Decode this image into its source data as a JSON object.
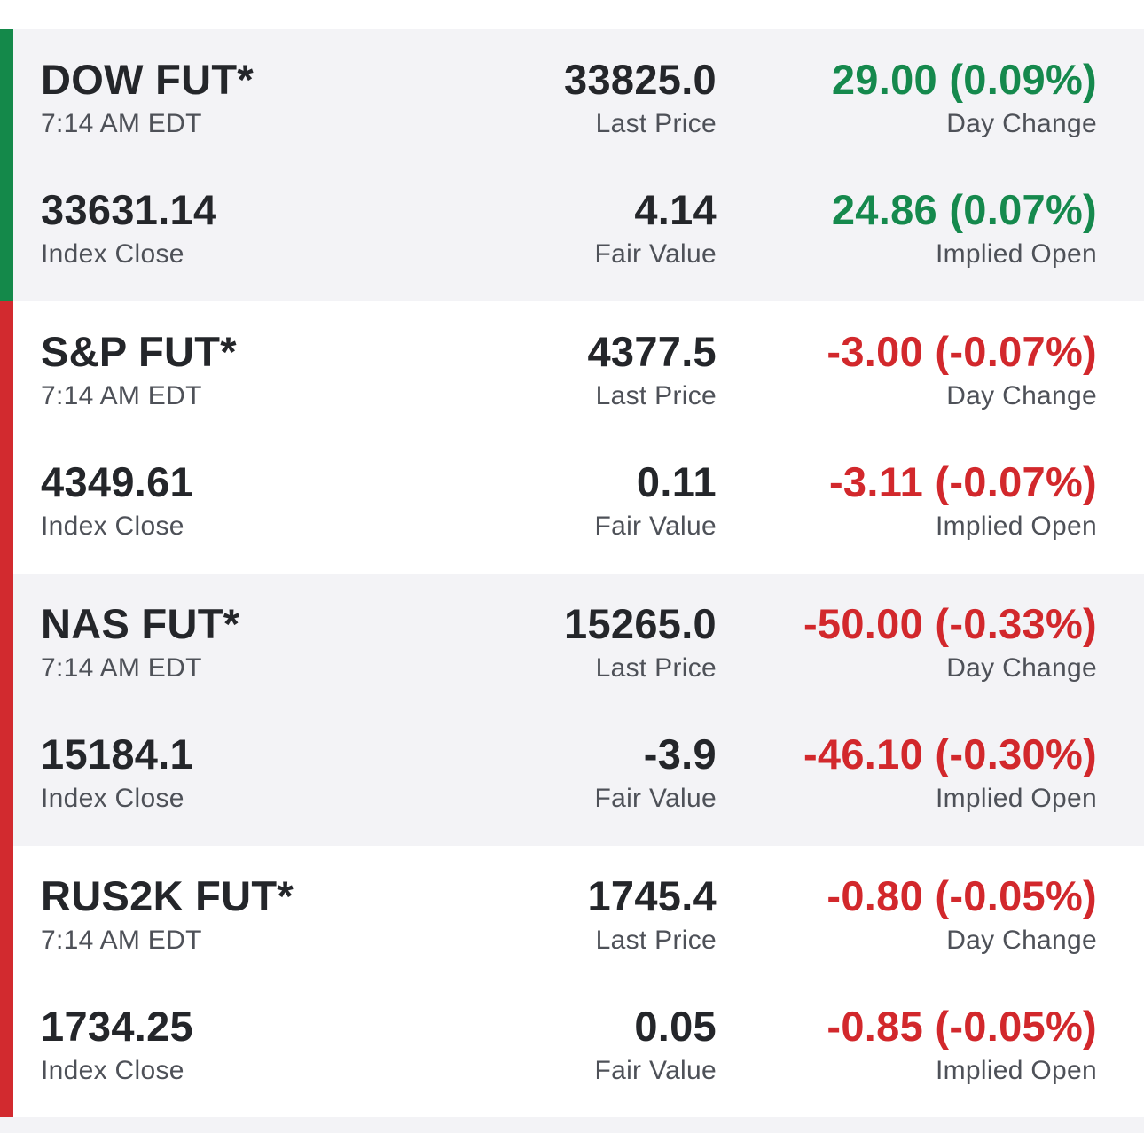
{
  "colors": {
    "up": "#14894a",
    "down": "#d22a2f",
    "text": "#24262a",
    "label": "#4e5158",
    "row_shaded": "#f3f3f6"
  },
  "futures": [
    {
      "name": "DOW FUT*",
      "time": "7:14 AM EDT",
      "last_price": "33825.0",
      "last_price_label": "Last Price",
      "day_change": "29.00 (0.09%)",
      "day_change_label": "Day Change",
      "index_close": "33631.14",
      "index_close_label": "Index Close",
      "fair_value": "4.14",
      "fair_value_label": "Fair Value",
      "implied_open": "24.86 (0.07%)",
      "implied_open_label": "Implied Open",
      "direction": "up"
    },
    {
      "name": "S&P FUT*",
      "time": "7:14 AM EDT",
      "last_price": "4377.5",
      "last_price_label": "Last Price",
      "day_change": "-3.00 (-0.07%)",
      "day_change_label": "Day Change",
      "index_close": "4349.61",
      "index_close_label": "Index Close",
      "fair_value": "0.11",
      "fair_value_label": "Fair Value",
      "implied_open": "-3.11 (-0.07%)",
      "implied_open_label": "Implied Open",
      "direction": "down"
    },
    {
      "name": "NAS FUT*",
      "time": "7:14 AM EDT",
      "last_price": "15265.0",
      "last_price_label": "Last Price",
      "day_change": "-50.00 (-0.33%)",
      "day_change_label": "Day Change",
      "index_close": "15184.1",
      "index_close_label": "Index Close",
      "fair_value": "-3.9",
      "fair_value_label": "Fair Value",
      "implied_open": "-46.10 (-0.30%)",
      "implied_open_label": "Implied Open",
      "direction": "down"
    },
    {
      "name": "RUS2K FUT*",
      "time": "7:14 AM EDT",
      "last_price": "1745.4",
      "last_price_label": "Last Price",
      "day_change": "-0.80 (-0.05%)",
      "day_change_label": "Day Change",
      "index_close": "1734.25",
      "index_close_label": "Index Close",
      "fair_value": "0.05",
      "fair_value_label": "Fair Value",
      "implied_open": "-0.85 (-0.05%)",
      "implied_open_label": "Implied Open",
      "direction": "down"
    }
  ]
}
